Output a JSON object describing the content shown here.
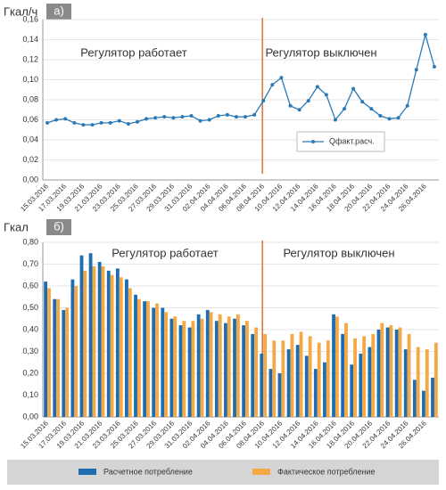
{
  "chart_data": [
    {
      "type": "line",
      "panel_label": "а)",
      "y_label": "Гкал/ч",
      "annotations": [
        "Регулятор работает",
        "Регулятор выключен"
      ],
      "categories": [
        "15.03.2016",
        null,
        "17.03.2016",
        null,
        "19.03.2016",
        null,
        "21.03.2016",
        null,
        "23.03.2016",
        null,
        "25.03.2016",
        null,
        "27.03.2016",
        null,
        "29.03.2016",
        null,
        "31.03.2016",
        null,
        "02.04.2016",
        null,
        "04.04.2016",
        null,
        "06.04.2016",
        null,
        "08.04.2016",
        null,
        "10.04.2016",
        null,
        "12.04.2016",
        null,
        "14.04.2016",
        null,
        "16.04.2016",
        null,
        "18.04.2016",
        null,
        "20.04.2016",
        null,
        "22.04.2016",
        null,
        "24.04.2016",
        null,
        "26.04.2016",
        null
      ],
      "series": [
        {
          "name": "Qфакт.расч.",
          "color": "#2a7ab8",
          "values": [
            0.057,
            0.06,
            0.061,
            0.057,
            0.055,
            0.055,
            0.057,
            0.057,
            0.059,
            0.056,
            0.058,
            0.061,
            0.062,
            0.063,
            0.062,
            0.063,
            0.064,
            0.059,
            0.06,
            0.064,
            0.065,
            0.063,
            0.063,
            0.065,
            0.079,
            0.095,
            0.102,
            0.074,
            0.07,
            0.079,
            0.093,
            0.085,
            0.06,
            0.071,
            0.091,
            0.078,
            0.071,
            0.064,
            0.061,
            0.062,
            0.074,
            0.11,
            0.145,
            0.113
          ]
        }
      ],
      "ylim": [
        0,
        0.16
      ],
      "yticks": [
        {
          "value": 0,
          "label": "0,00"
        },
        {
          "value": 0.02,
          "label": "0,02"
        },
        {
          "value": 0.04,
          "label": "0,04"
        },
        {
          "value": 0.06,
          "label": "0,06"
        },
        {
          "value": 0.08,
          "label": "0,08"
        },
        {
          "value": 0.1,
          "label": "0,10"
        },
        {
          "value": 0.12,
          "label": "0,12"
        },
        {
          "value": 0.14,
          "label": "0,14"
        },
        {
          "value": 0.16,
          "label": "0,16"
        }
      ],
      "grid": true
    },
    {
      "type": "bar",
      "panel_label": "б)",
      "y_label": "Гкал",
      "annotations": [
        "Регулятор работает",
        "Регулятор выключен"
      ],
      "categories": [
        "15.03.2016",
        null,
        "17.03.2016",
        null,
        "19.03.2016",
        null,
        "21.03.2016",
        null,
        "23.03.2016",
        null,
        "25.03.2016",
        null,
        "27.03.2016",
        null,
        "29.03.2016",
        null,
        "31.03.2016",
        null,
        "02.04.2016",
        null,
        "04.04.2016",
        null,
        "06.04.2016",
        null,
        "08.04.2016",
        null,
        "10.04.2016",
        null,
        "12.04.2016",
        null,
        "14.04.2016",
        null,
        "16.04.2016",
        null,
        "18.04.2016",
        null,
        "20.04.2016",
        null,
        "22.04.2016",
        null,
        "24.04.2016",
        null,
        "26.04.2016",
        null
      ],
      "series": [
        {
          "name": "Расчетное потребление",
          "color": "#1f6cb0",
          "values": [
            0.62,
            0.54,
            0.49,
            0.63,
            0.74,
            0.75,
            0.71,
            0.67,
            0.68,
            0.63,
            0.56,
            0.53,
            0.5,
            0.5,
            0.45,
            0.42,
            0.41,
            0.47,
            0.49,
            0.44,
            0.43,
            0.45,
            0.42,
            0.38,
            0.29,
            0.22,
            0.2,
            0.31,
            0.33,
            0.28,
            0.22,
            0.25,
            0.47,
            0.38,
            0.24,
            0.29,
            0.32,
            0.4,
            0.41,
            0.4,
            0.31,
            0.17,
            0.12,
            0.18
          ]
        },
        {
          "name": "Фактическое потребление",
          "color": "#f5a945",
          "values": [
            0.59,
            0.54,
            0.5,
            0.6,
            0.67,
            0.69,
            0.69,
            0.65,
            0.64,
            0.59,
            0.54,
            0.53,
            0.52,
            0.48,
            0.46,
            0.44,
            0.44,
            0.45,
            0.48,
            0.47,
            0.46,
            0.47,
            0.44,
            0.41,
            0.38,
            0.35,
            0.35,
            0.38,
            0.39,
            0.37,
            0.34,
            0.35,
            0.46,
            0.43,
            0.36,
            0.37,
            0.38,
            0.43,
            0.42,
            0.41,
            0.38,
            0.32,
            0.31,
            0.34
          ]
        }
      ],
      "ylim": [
        0,
        0.8
      ],
      "yticks": [
        {
          "value": 0,
          "label": "0,00"
        },
        {
          "value": 0.1,
          "label": "0,10"
        },
        {
          "value": 0.2,
          "label": "0,20"
        },
        {
          "value": 0.3,
          "label": "0,30"
        },
        {
          "value": 0.4,
          "label": "0,40"
        },
        {
          "value": 0.5,
          "label": "0,50"
        },
        {
          "value": 0.6,
          "label": "0,60"
        },
        {
          "value": 0.7,
          "label": "0,70"
        },
        {
          "value": 0.8,
          "label": "0,80"
        }
      ],
      "grid": true
    }
  ]
}
